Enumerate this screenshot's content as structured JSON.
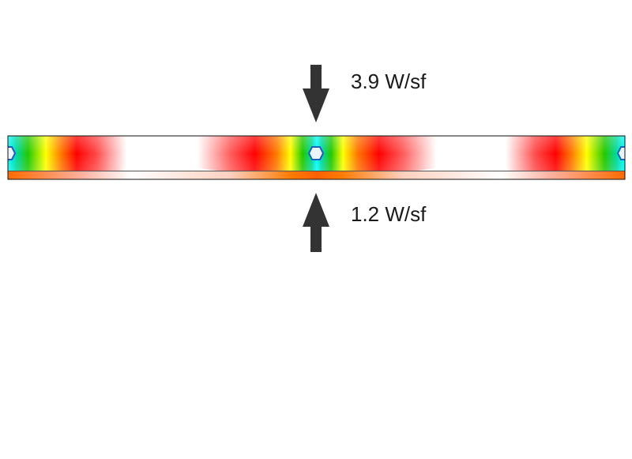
{
  "annotations": {
    "top_heat_flux": "3.9 W/sf",
    "bottom_heat_flux": "1.2 W/sf"
  },
  "colors": {
    "arrow": "#333333",
    "outline": "#111111",
    "pipe_fill": "#eaf6ff",
    "heat_hot": "#ff0000",
    "heat_warm": "#ffff00",
    "heat_mid": "#00d000",
    "heat_cool": "#00ffff",
    "background": "#ffffff"
  },
  "diagram": {
    "kind": "thermal-gradient-slab-section",
    "heat_sources": [
      "pipe-left-edge",
      "pipe-center",
      "pipe-right-edge"
    ]
  }
}
